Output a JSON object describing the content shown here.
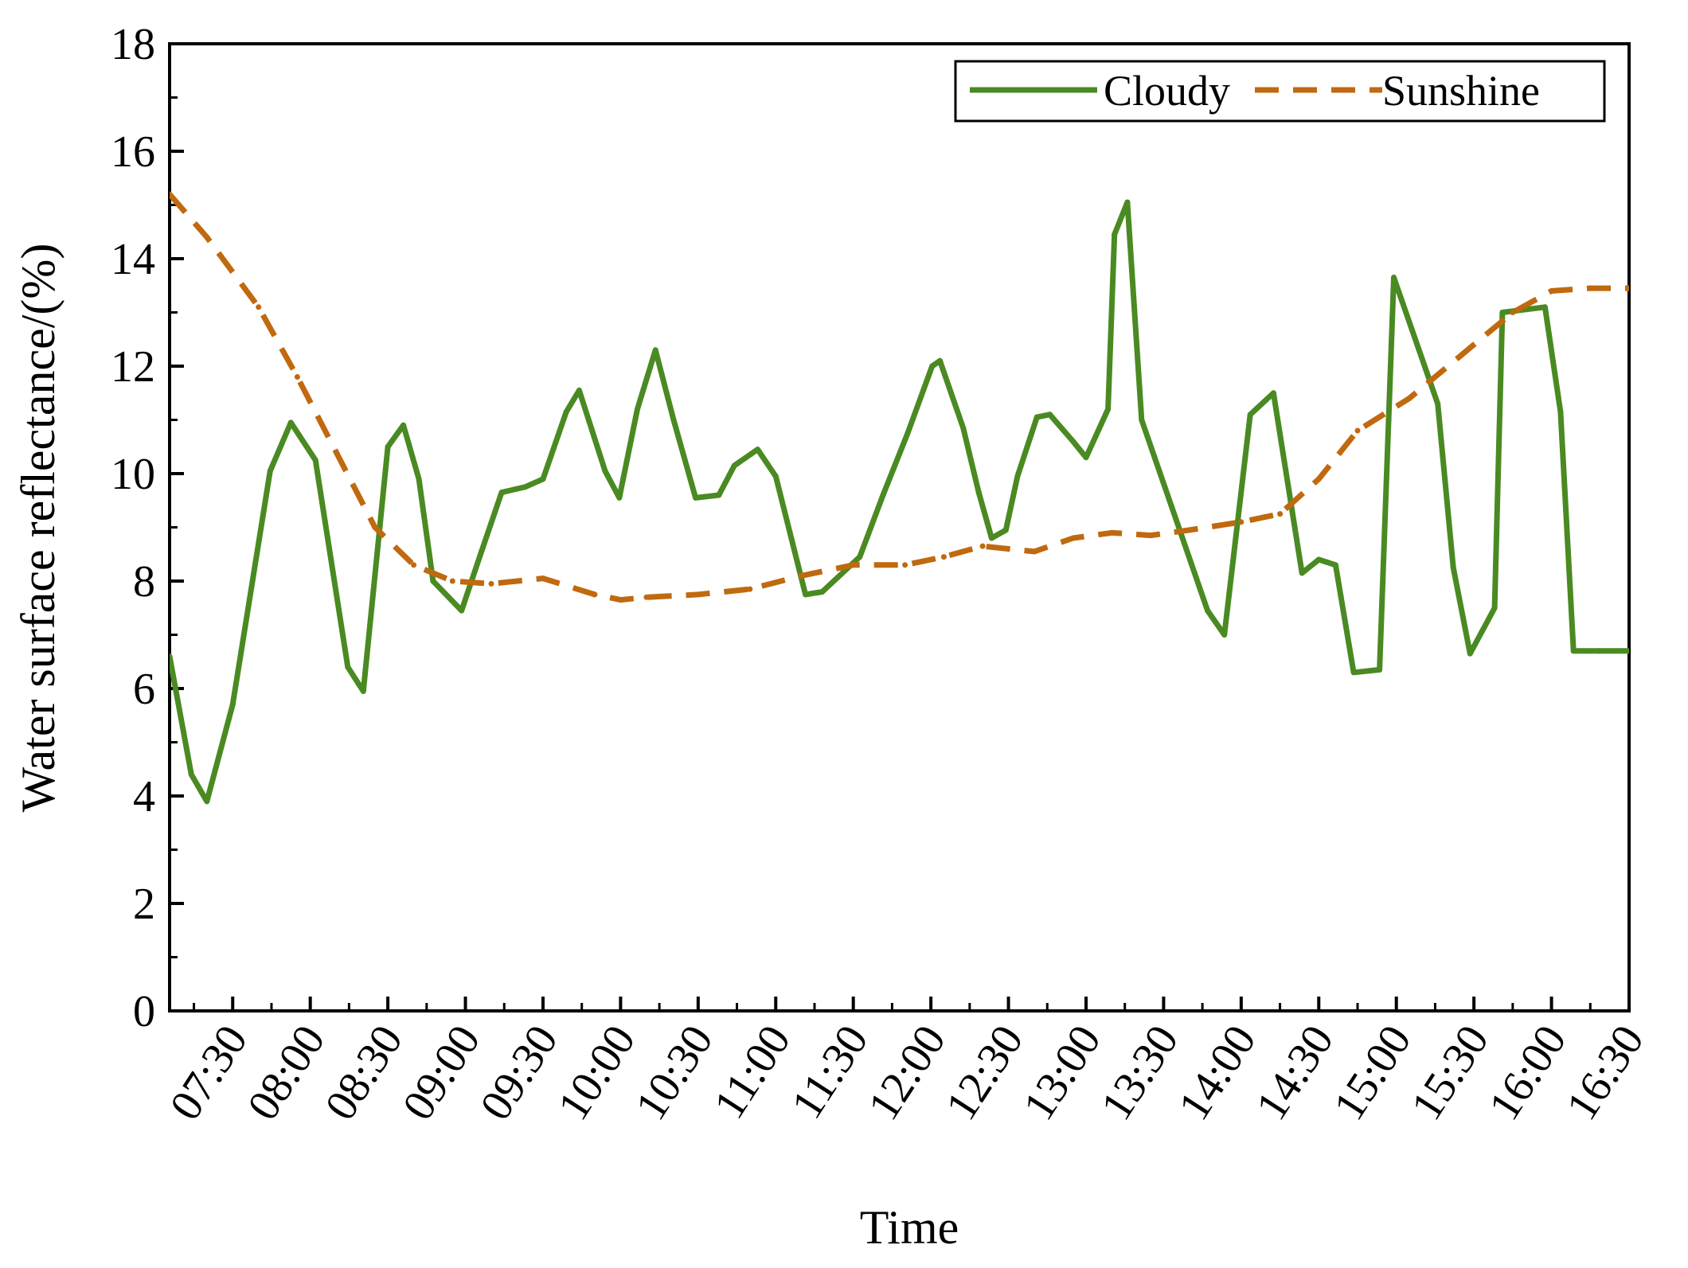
{
  "chart_data": {
    "type": "line",
    "title": "",
    "xlabel": "Time",
    "ylabel": "Water surface reflectance/(%)",
    "x_tick_labels": [
      "07:30",
      "08:00",
      "08:30",
      "09:00",
      "09:30",
      "10:00",
      "10:30",
      "11:00",
      "11:30",
      "12:00",
      "12:30",
      "13:00",
      "13:30",
      "14:00",
      "14:30",
      "15:00",
      "15:30",
      "16:00",
      "16:30"
    ],
    "x_tick_minutes": [
      450,
      480,
      510,
      540,
      570,
      600,
      630,
      660,
      690,
      720,
      750,
      780,
      810,
      840,
      870,
      900,
      930,
      960,
      990
    ],
    "xlim": [
      425.6,
      990
    ],
    "ylim": [
      0,
      18
    ],
    "y_ticks": [
      0,
      2,
      4,
      6,
      8,
      10,
      12,
      14,
      16,
      18
    ],
    "y_tick_labels": [
      "0",
      "2",
      "4",
      "6",
      "8",
      "10",
      "12",
      "14",
      "16",
      "18"
    ],
    "legend_position": "top-right",
    "series": [
      {
        "name": "Cloudy",
        "color": "#4a8a22",
        "dash": "solid",
        "x": [
          425.6,
          434,
          440,
          450,
          464.5,
          472.5,
          482,
          494.5,
          500.5,
          510,
          516,
          522,
          527.5,
          538.5,
          545.5,
          554,
          563,
          570,
          579,
          584,
          594,
          599.5,
          606.5,
          613.5,
          620.5,
          629,
          638,
          644,
          653,
          660,
          671.5,
          678,
          692.5,
          701.5,
          711,
          720.5,
          723.5,
          732.5,
          738.5,
          743.5,
          749,
          753.5,
          761,
          766,
          775,
          780,
          788.5,
          791,
          796,
          801.5,
          827,
          833.5,
          843.5,
          852.5,
          863.5,
          870,
          876.5,
          883.5,
          893.5,
          899,
          916,
          922,
          928.5,
          938,
          941,
          957.5,
          963.5,
          968.5,
          978.5,
          986,
          990
        ],
        "y": [
          6.6,
          4.4,
          3.9,
          5.7,
          10.05,
          10.95,
          10.25,
          6.4,
          5.95,
          10.5,
          10.9,
          9.9,
          8.0,
          7.45,
          8.45,
          9.65,
          9.75,
          9.9,
          11.15,
          11.55,
          10.05,
          9.55,
          11.2,
          12.3,
          11.0,
          9.55,
          9.6,
          10.15,
          10.45,
          9.95,
          7.75,
          7.8,
          8.45,
          9.6,
          10.75,
          12.0,
          12.1,
          10.85,
          9.65,
          8.8,
          8.95,
          9.95,
          11.05,
          11.1,
          10.6,
          10.3,
          11.2,
          14.45,
          15.05,
          11.0,
          7.45,
          7.0,
          11.1,
          11.5,
          8.15,
          8.4,
          8.3,
          6.3,
          6.35,
          13.65,
          11.3,
          8.25,
          6.65,
          7.5,
          13.0,
          13.1,
          11.15,
          6.7,
          6.7,
          6.7,
          6.7
        ]
      },
      {
        "name": "Sunshine",
        "color": "#c0690f",
        "dash": "dashed",
        "x": [
          425.6,
          440,
          460,
          475,
          490,
          505,
          520,
          535,
          550,
          570,
          590,
          600,
          610,
          630,
          650,
          670,
          690,
          710,
          725,
          740,
          760,
          775,
          790,
          805,
          820,
          840,
          855,
          870,
          885,
          905,
          925,
          945,
          960,
          975,
          990
        ],
        "y": [
          15.2,
          14.4,
          13.1,
          11.8,
          10.4,
          9.0,
          8.3,
          8.0,
          7.95,
          8.05,
          7.75,
          7.65,
          7.7,
          7.75,
          7.85,
          8.1,
          8.3,
          8.3,
          8.45,
          8.65,
          8.55,
          8.8,
          8.9,
          8.85,
          8.95,
          9.1,
          9.25,
          9.9,
          10.8,
          11.4,
          12.2,
          13.0,
          13.4,
          13.45,
          13.45
        ]
      }
    ]
  }
}
